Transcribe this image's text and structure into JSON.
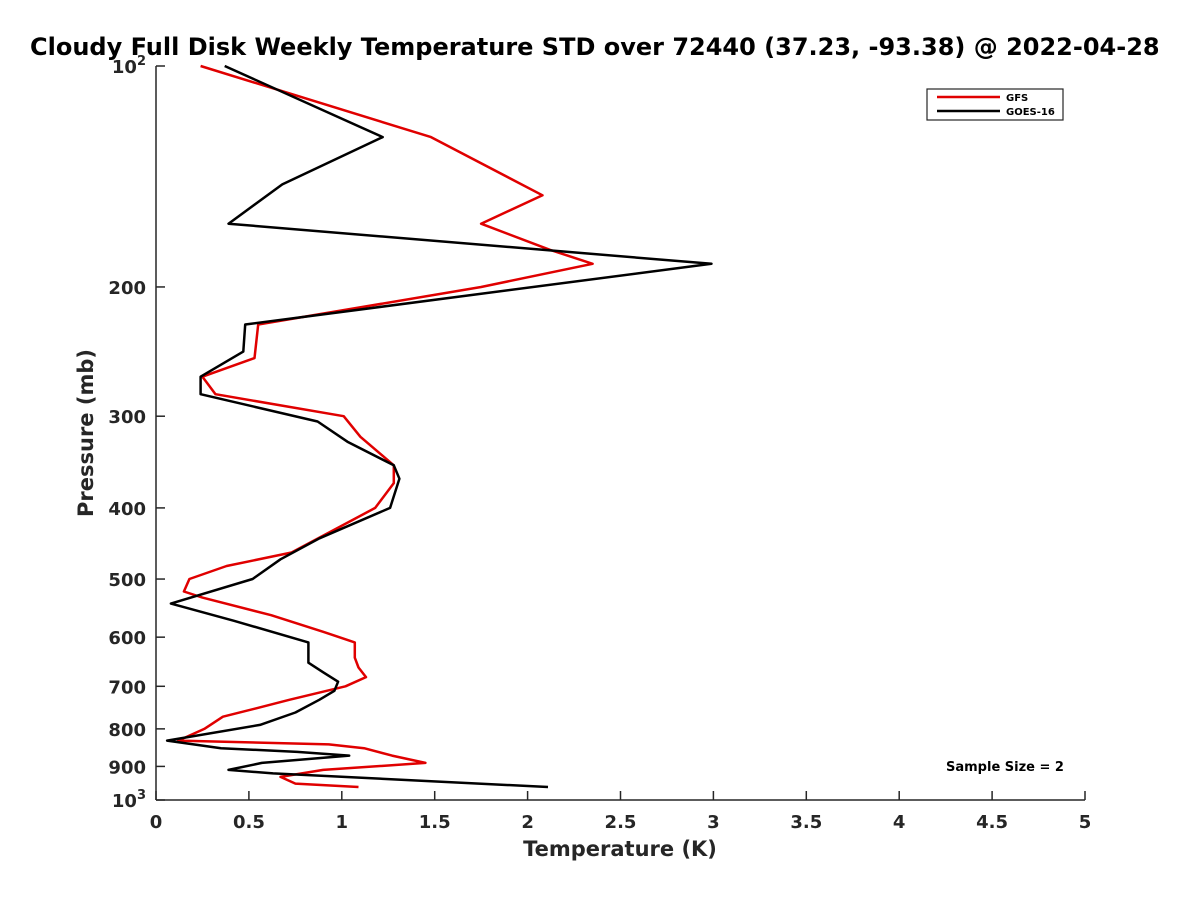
{
  "chart_data": {
    "type": "line",
    "title": "Cloudy Full Disk Weekly Temperature STD over 72440 (37.23, -93.38) @ 2022-04-28",
    "xlabel": "Temperature (K)",
    "ylabel": "Pressure (mb)",
    "xlim": [
      0,
      5
    ],
    "ylim": [
      100,
      1000
    ],
    "yscale": "log",
    "y_reversed": true,
    "x_ticks": [
      "0",
      "0.5",
      "1",
      "1.5",
      "2",
      "2.5",
      "3",
      "3.5",
      "4",
      "4.5",
      "5"
    ],
    "x_tick_values": [
      0,
      0.5,
      1,
      1.5,
      2,
      2.5,
      3,
      3.5,
      4,
      4.5,
      5
    ],
    "y_ticks": [
      {
        "value": 100,
        "label": "10",
        "sup": "2"
      },
      {
        "value": 200,
        "label": "200",
        "sup": ""
      },
      {
        "value": 300,
        "label": "300",
        "sup": ""
      },
      {
        "value": 400,
        "label": "400",
        "sup": ""
      },
      {
        "value": 500,
        "label": "500",
        "sup": ""
      },
      {
        "value": 600,
        "label": "600",
        "sup": ""
      },
      {
        "value": 700,
        "label": "700",
        "sup": ""
      },
      {
        "value": 800,
        "label": "800",
        "sup": ""
      },
      {
        "value": 900,
        "label": "900",
        "sup": ""
      },
      {
        "value": 1000,
        "label": "10",
        "sup": "3"
      }
    ],
    "legend_position": "top-right",
    "grid": false,
    "annotation": "Sample Size = 2",
    "series": [
      {
        "name": "GFS",
        "color": "#e00000",
        "points": [
          [
            0.24,
            100
          ],
          [
            1.48,
            125
          ],
          [
            2.08,
            150
          ],
          [
            1.75,
            164
          ],
          [
            2.12,
            178
          ],
          [
            2.35,
            186
          ],
          [
            1.75,
            200
          ],
          [
            0.55,
            225
          ],
          [
            0.53,
            250
          ],
          [
            0.25,
            265
          ],
          [
            0.32,
            280
          ],
          [
            1.01,
            300
          ],
          [
            1.1,
            320
          ],
          [
            1.28,
            350
          ],
          [
            1.28,
            370
          ],
          [
            1.18,
            400
          ],
          [
            0.73,
            460
          ],
          [
            0.38,
            480
          ],
          [
            0.18,
            500
          ],
          [
            0.15,
            520
          ],
          [
            0.25,
            530
          ],
          [
            0.62,
            560
          ],
          [
            0.9,
            590
          ],
          [
            1.07,
            610
          ],
          [
            1.07,
            640
          ],
          [
            1.09,
            660
          ],
          [
            1.13,
            680
          ],
          [
            1.02,
            700
          ],
          [
            0.72,
            730
          ],
          [
            0.54,
            750
          ],
          [
            0.36,
            770
          ],
          [
            0.26,
            800
          ],
          [
            0.12,
            830
          ],
          [
            0.93,
            840
          ],
          [
            1.12,
            850
          ],
          [
            1.27,
            870
          ],
          [
            1.45,
            890
          ],
          [
            0.9,
            910
          ],
          [
            0.67,
            930
          ],
          [
            0.75,
            950
          ],
          [
            1.09,
            960
          ]
        ]
      },
      {
        "name": "GOES-16",
        "color": "#000000",
        "points": [
          [
            0.37,
            100
          ],
          [
            1.22,
            125
          ],
          [
            0.68,
            145
          ],
          [
            0.39,
            164
          ],
          [
            2.99,
            186
          ],
          [
            0.48,
            225
          ],
          [
            0.47,
            245
          ],
          [
            0.24,
            265
          ],
          [
            0.24,
            280
          ],
          [
            0.87,
            305
          ],
          [
            1.03,
            325
          ],
          [
            1.28,
            350
          ],
          [
            1.31,
            365
          ],
          [
            1.26,
            400
          ],
          [
            0.88,
            440
          ],
          [
            0.67,
            470
          ],
          [
            0.52,
            500
          ],
          [
            0.08,
            540
          ],
          [
            0.42,
            570
          ],
          [
            0.82,
            610
          ],
          [
            0.82,
            650
          ],
          [
            0.9,
            670
          ],
          [
            0.98,
            690
          ],
          [
            0.96,
            710
          ],
          [
            0.88,
            730
          ],
          [
            0.75,
            760
          ],
          [
            0.56,
            790
          ],
          [
            0.06,
            830
          ],
          [
            0.35,
            850
          ],
          [
            0.76,
            860
          ],
          [
            1.04,
            870
          ],
          [
            0.57,
            890
          ],
          [
            0.39,
            910
          ],
          [
            0.63,
            920
          ],
          [
            2.11,
            960
          ]
        ]
      }
    ]
  }
}
